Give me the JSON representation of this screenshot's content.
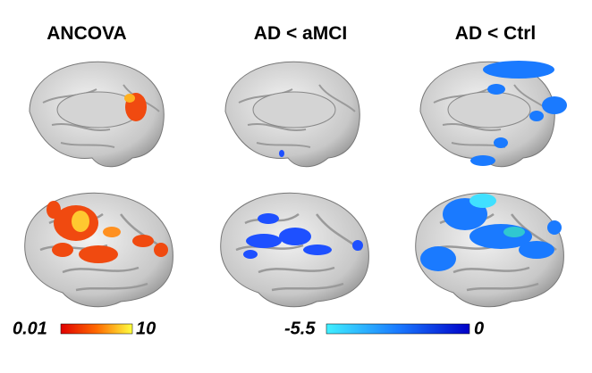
{
  "panels": [
    {
      "title": "ANCOVA"
    },
    {
      "title": "AD < aMCI"
    },
    {
      "title": "AD < Ctrl"
    }
  ],
  "colorbars": [
    {
      "min_label": "0.01",
      "max_label": "10"
    },
    {
      "min_label": "-5.5",
      "max_label": "0"
    }
  ]
}
